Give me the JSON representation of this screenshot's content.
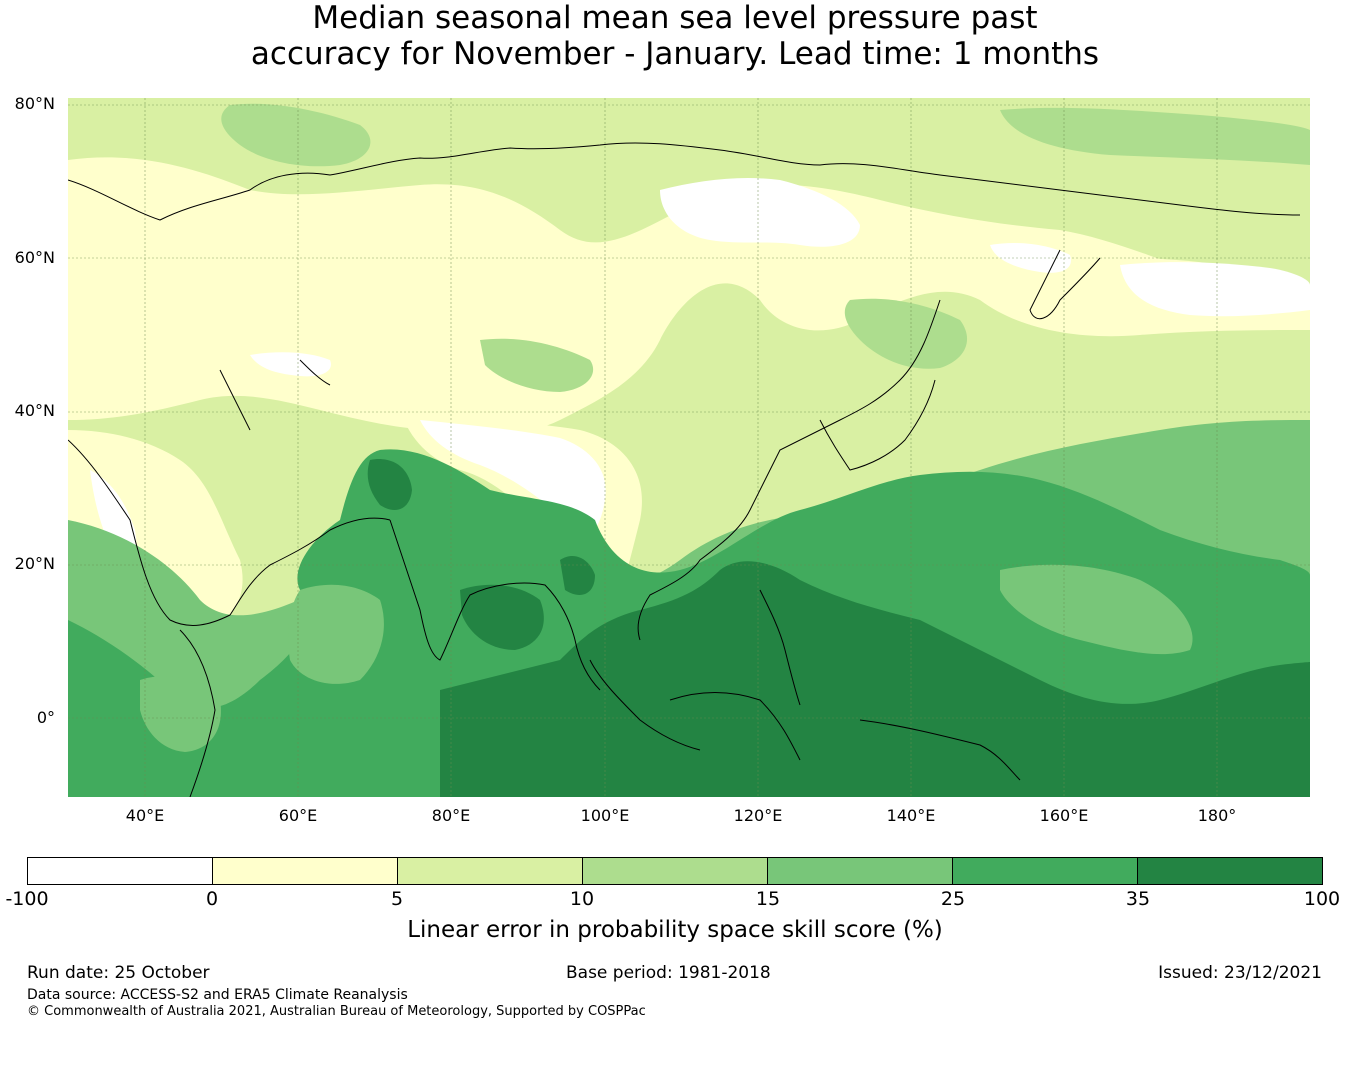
{
  "title": {
    "line1": "Median seasonal mean sea level pressure past",
    "line2": "accuracy for November - January. Lead time: 1 months"
  },
  "map": {
    "lat_labels": [
      "80°N",
      "60°N",
      "40°N",
      "20°N",
      "0°"
    ],
    "lon_labels": [
      "40°E",
      "60°E",
      "80°E",
      "100°E",
      "120°E",
      "140°E",
      "160°E",
      "180°"
    ],
    "extent": {
      "lon_min": 30,
      "lon_max": 192,
      "lat_min": -10,
      "lat_max": 81
    }
  },
  "colorbar": {
    "ticks": [
      "-100",
      "0",
      "5",
      "10",
      "15",
      "25",
      "35",
      "100"
    ],
    "colors": [
      "#ffffff",
      "#ffffcc",
      "#d9f0a3",
      "#addd8e",
      "#78c679",
      "#41ab5d",
      "#238443"
    ],
    "label": "Linear error in probability space skill score (%)"
  },
  "footer": {
    "run_date": "Run date: 25 October",
    "base_period": "Base period: 1981-2018",
    "issued": "Issued: 23/12/2021",
    "data_source": "Data source: ACCESS-S2 and ERA5 Climate Reanalysis",
    "copyright": "© Commonwealth of Australia 2021, Australian Bureau of Meteorology, Supported by COSPPac"
  }
}
